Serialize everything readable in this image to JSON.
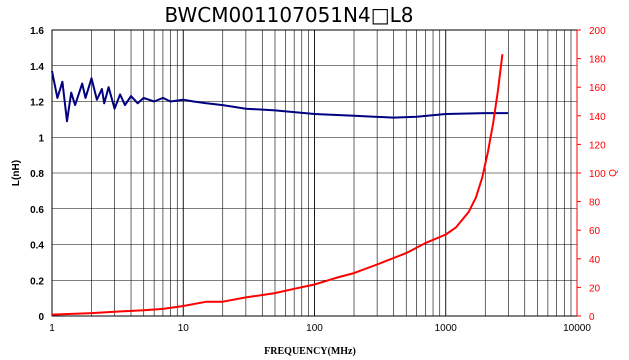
{
  "chart_data": {
    "type": "line",
    "title": "BWCM001107051N4□L8",
    "xlabel": "FREQUENCY(MHz)",
    "ylabel": "L(nH)",
    "y2label": "Q",
    "x_scale": "log",
    "xlim": [
      1,
      10000
    ],
    "ylim": [
      0,
      1.6
    ],
    "y2lim": [
      0,
      200
    ],
    "x_ticks": [
      "1",
      "10",
      "100",
      "1000",
      "10000"
    ],
    "y_ticks": [
      "0",
      "0.2",
      "0.4",
      "0.6",
      "0.8",
      "1",
      "1.2",
      "1.4",
      "1.6"
    ],
    "y2_ticks": [
      "0",
      "20",
      "40",
      "60",
      "80",
      "100",
      "120",
      "140",
      "160",
      "180",
      "200"
    ],
    "grid": true,
    "colors": {
      "L": "#000080",
      "Q": "#ff0000",
      "right_axis": "#ff0000"
    },
    "series": [
      {
        "axis": "left",
        "x": [
          1,
          1.1,
          1.2,
          1.3,
          1.4,
          1.5,
          1.7,
          1.8,
          2.0,
          2.2,
          2.4,
          2.5,
          2.7,
          3.0,
          3.3,
          3.6,
          4.0,
          4.5,
          5.0,
          6.0,
          7.0,
          8.0,
          10,
          12,
          15,
          20,
          30,
          50,
          100,
          200,
          400,
          600,
          1000,
          2000,
          3000
        ],
        "y": [
          1.37,
          1.22,
          1.31,
          1.09,
          1.25,
          1.18,
          1.3,
          1.22,
          1.33,
          1.21,
          1.27,
          1.19,
          1.28,
          1.16,
          1.24,
          1.18,
          1.23,
          1.19,
          1.22,
          1.2,
          1.22,
          1.2,
          1.21,
          1.2,
          1.19,
          1.18,
          1.16,
          1.15,
          1.13,
          1.12,
          1.11,
          1.115,
          1.13,
          1.135,
          1.135
        ]
      },
      {
        "axis": "right",
        "x": [
          1,
          2,
          3,
          5,
          7,
          10,
          15,
          20,
          30,
          50,
          70,
          100,
          150,
          200,
          300,
          500,
          700,
          1000,
          1200,
          1500,
          1700,
          1900,
          2100,
          2300,
          2500,
          2700
        ],
        "y": [
          1,
          2,
          3,
          4,
          5,
          7,
          10,
          10,
          13,
          16,
          19,
          22,
          27,
          30,
          36,
          44,
          51,
          57,
          62,
          73,
          83,
          97,
          115,
          135,
          158,
          183
        ]
      }
    ]
  }
}
